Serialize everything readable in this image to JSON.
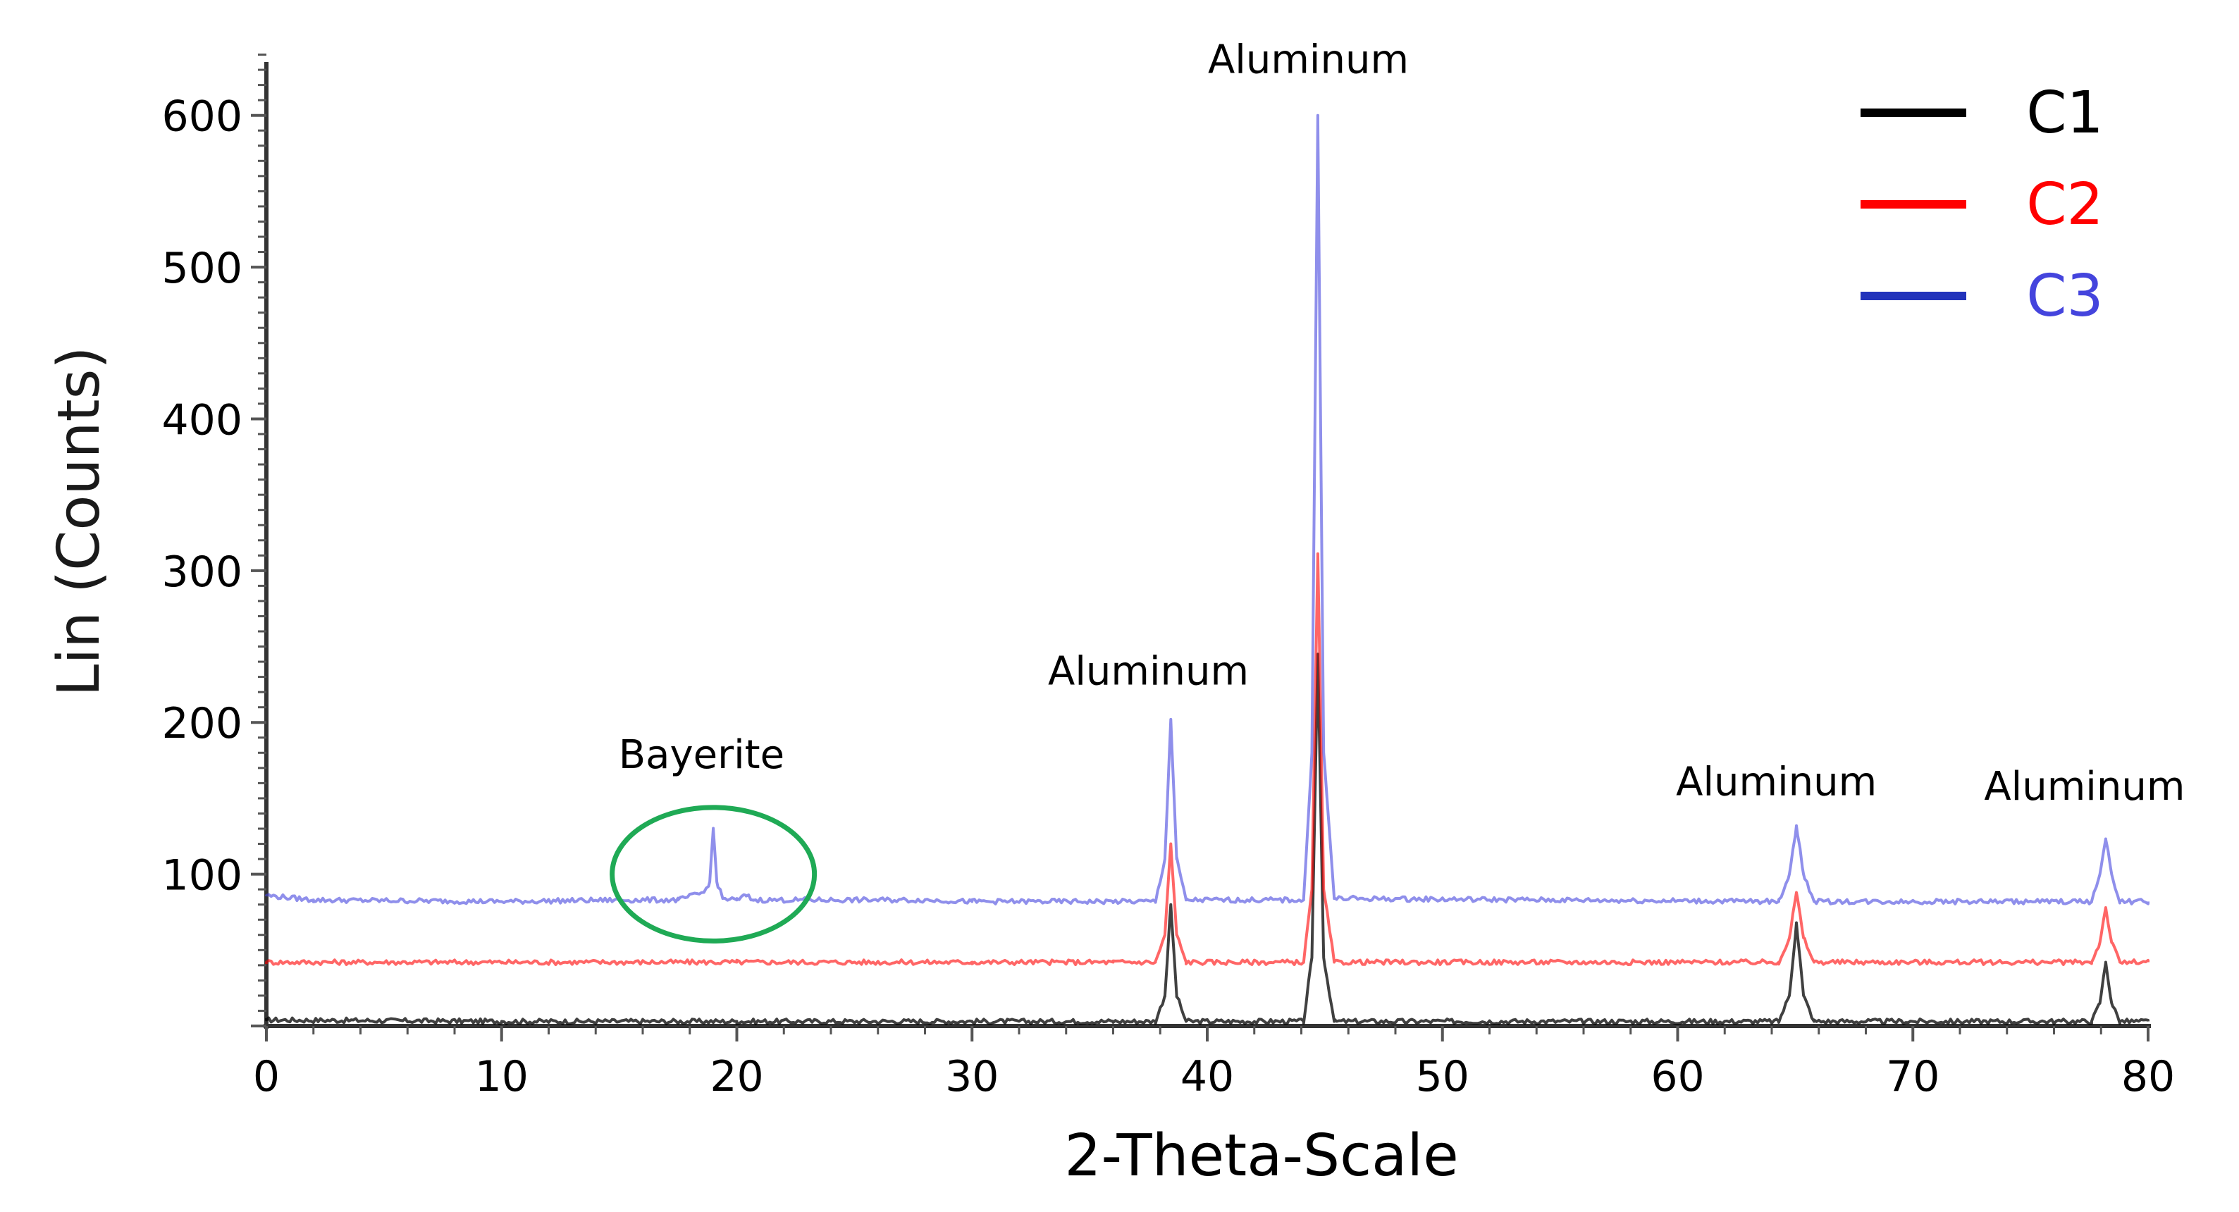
{
  "chart_data": {
    "type": "line",
    "title": "",
    "xlabel": "2-Theta-Scale",
    "ylabel": "Lin (Counts)",
    "xlim": [
      0,
      80
    ],
    "ylim": [
      0,
      650
    ],
    "x_ticks": [
      0,
      10,
      20,
      30,
      40,
      50,
      60,
      70,
      80
    ],
    "y_ticks": [
      100,
      200,
      300,
      400,
      500,
      600
    ],
    "grid": false,
    "legend_position": "top-right",
    "series": [
      {
        "name": "C1",
        "color": "#000000",
        "baseline": 3,
        "points": [
          [
            0,
            4
          ],
          [
            10,
            3
          ],
          [
            20,
            3
          ],
          [
            30,
            3
          ],
          [
            36,
            3
          ],
          [
            37.8,
            3
          ],
          [
            38.2,
            20
          ],
          [
            38.45,
            80
          ],
          [
            38.7,
            20
          ],
          [
            39.1,
            3
          ],
          [
            44.1,
            3
          ],
          [
            44.45,
            45
          ],
          [
            44.7,
            245
          ],
          [
            44.95,
            45
          ],
          [
            45.4,
            3
          ],
          [
            64.3,
            3
          ],
          [
            64.75,
            20
          ],
          [
            65.05,
            68
          ],
          [
            65.35,
            20
          ],
          [
            65.8,
            3
          ],
          [
            77.6,
            3
          ],
          [
            77.95,
            15
          ],
          [
            78.2,
            42
          ],
          [
            78.45,
            15
          ],
          [
            78.8,
            3
          ],
          [
            80,
            3
          ]
        ]
      },
      {
        "name": "C2",
        "color": "#ff0000",
        "baseline": 42,
        "points": [
          [
            0,
            42
          ],
          [
            10,
            42
          ],
          [
            20,
            42
          ],
          [
            30,
            42
          ],
          [
            36,
            42
          ],
          [
            37.8,
            42
          ],
          [
            38.2,
            60
          ],
          [
            38.45,
            120
          ],
          [
            38.7,
            60
          ],
          [
            39.1,
            42
          ],
          [
            44.1,
            42
          ],
          [
            44.45,
            90
          ],
          [
            44.7,
            310
          ],
          [
            44.95,
            90
          ],
          [
            45.4,
            42
          ],
          [
            64.3,
            42
          ],
          [
            64.75,
            58
          ],
          [
            65.05,
            88
          ],
          [
            65.35,
            58
          ],
          [
            65.8,
            42
          ],
          [
            77.6,
            42
          ],
          [
            77.95,
            55
          ],
          [
            78.2,
            78
          ],
          [
            78.45,
            55
          ],
          [
            78.8,
            42
          ],
          [
            80,
            42
          ]
        ]
      },
      {
        "name": "C3",
        "color": "#4444dd",
        "baseline": 82,
        "points": [
          [
            0,
            86
          ],
          [
            2,
            83
          ],
          [
            10,
            82
          ],
          [
            15,
            83
          ],
          [
            17.5,
            83
          ],
          [
            18.6,
            88
          ],
          [
            18.85,
            95
          ],
          [
            19.0,
            130
          ],
          [
            19.15,
            95
          ],
          [
            19.4,
            84
          ],
          [
            20.0,
            83
          ],
          [
            20.4,
            86
          ],
          [
            20.7,
            83
          ],
          [
            28,
            83
          ],
          [
            30,
            82
          ],
          [
            36,
            82
          ],
          [
            37.8,
            82
          ],
          [
            38.2,
            110
          ],
          [
            38.45,
            202
          ],
          [
            38.7,
            110
          ],
          [
            39.1,
            83
          ],
          [
            44.1,
            83
          ],
          [
            44.45,
            180
          ],
          [
            44.7,
            600
          ],
          [
            44.95,
            180
          ],
          [
            45.4,
            84
          ],
          [
            64.3,
            82
          ],
          [
            64.75,
            100
          ],
          [
            65.05,
            132
          ],
          [
            65.35,
            100
          ],
          [
            65.8,
            82
          ],
          [
            77.6,
            82
          ],
          [
            77.95,
            100
          ],
          [
            78.2,
            123
          ],
          [
            78.45,
            100
          ],
          [
            78.8,
            82
          ],
          [
            80,
            82
          ]
        ]
      }
    ],
    "annotations": [
      {
        "text": "Bayerite",
        "x": 18.5,
        "y": 170
      },
      {
        "text": "Aluminum",
        "x": 37.5,
        "y": 225
      },
      {
        "text": "Aluminum",
        "x": 44.3,
        "y": 628
      },
      {
        "text": "Aluminum",
        "x": 64.2,
        "y": 152
      },
      {
        "text": "Aluminum",
        "x": 77.3,
        "y": 149
      }
    ],
    "highlight_ellipse": {
      "cx": 19,
      "cy": 100,
      "rx": 4.3,
      "ry": 44,
      "color": "#1faa55"
    }
  }
}
